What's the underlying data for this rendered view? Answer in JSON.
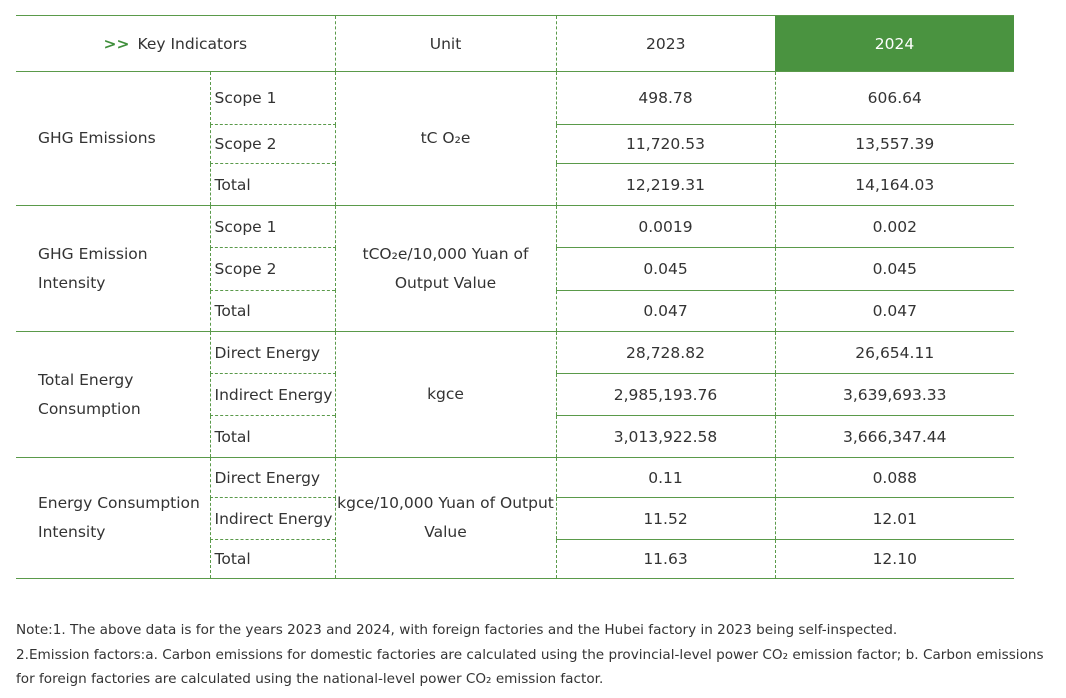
{
  "header": {
    "arrow": ">>",
    "indicators": "Key Indicators",
    "unit": "Unit",
    "y2023": "2023",
    "y2024": "2024"
  },
  "colors": {
    "accent": "#4a9340",
    "line": "#5a9a4a"
  },
  "groups": [
    {
      "name": "GHG Emissions",
      "unit": "tC O₂e",
      "rows": [
        {
          "label": "Scope 1",
          "v2023": "498.78",
          "v2024": "606.64"
        },
        {
          "label": "Scope 2",
          "v2023": "11,720.53",
          "v2024": "13,557.39"
        },
        {
          "label": "Total",
          "v2023": "12,219.31",
          "v2024": "14,164.03"
        }
      ]
    },
    {
      "name": "GHG Emission Intensity",
      "unit": "tCO₂e/10,000 Yuan of Output Value",
      "rows": [
        {
          "label": "Scope 1",
          "v2023": "0.0019",
          "v2024": "0.002"
        },
        {
          "label": "Scope 2",
          "v2023": "0.045",
          "v2024": "0.045"
        },
        {
          "label": "Total",
          "v2023": "0.047",
          "v2024": "0.047"
        }
      ]
    },
    {
      "name": "Total Energy Consumption",
      "unit": "kgce",
      "rows": [
        {
          "label": "Direct Energy",
          "v2023": "28,728.82",
          "v2024": "26,654.11"
        },
        {
          "label": "Indirect Energy",
          "v2023": "2,985,193.76",
          "v2024": "3,639,693.33"
        },
        {
          "label": "Total",
          "v2023": "3,013,922.58",
          "v2024": "3,666,347.44"
        }
      ]
    },
    {
      "name": "Energy Consumption Intensity",
      "unit": "kgce/10,000 Yuan of Output Value",
      "rows": [
        {
          "label": "Direct Energy",
          "v2023": "0.11",
          "v2024": "0.088"
        },
        {
          "label": "Indirect Energy",
          "v2023": "11.52",
          "v2024": "12.01"
        },
        {
          "label": "Total",
          "v2023": "11.63",
          "v2024": "12.10"
        }
      ]
    }
  ],
  "notes": [
    "Note:1. The above data is for the years 2023 and 2024, with foreign factories and the Hubei factory in 2023 being self-inspected.",
    "2.Emission factors:a. Carbon emissions for domestic factories are calculated using the provincial-level power CO₂ emission factor;  b. Carbon emissions for foreign factories are calculated using the national-level power CO₂ emission factor."
  ]
}
